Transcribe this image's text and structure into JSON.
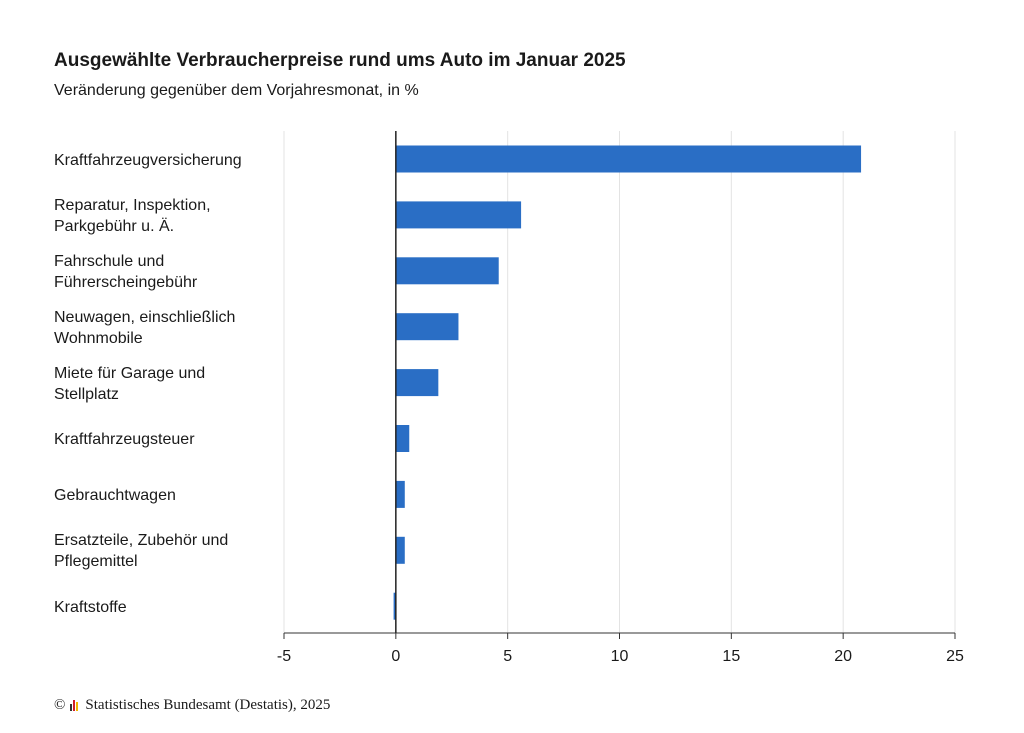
{
  "chart_data": {
    "type": "bar",
    "orientation": "horizontal",
    "title": "Ausgewählte Verbraucherpreise rund ums Auto im Januar 2025",
    "subtitle": "Veränderung gegenüber dem Vorjahresmonat, in %",
    "categories": [
      "Kraftfahrzeugversicherung",
      "Reparatur, Inspektion, Parkgebühr u. Ä.",
      "Fahrschule und Führerscheingebühr",
      "Neuwagen, einschließlich Wohnmobile",
      "Miete für Garage und Stellplatz",
      "Kraftfahrzeugsteuer",
      "Gebrauchtwagen",
      "Ersatzteile, Zubehör und Pflegemittel",
      "Kraftstoffe"
    ],
    "category_lines": [
      [
        "Kraftfahrzeugversicherung"
      ],
      [
        "Reparatur, Inspektion,",
        "Parkgebühr u. Ä."
      ],
      [
        "Fahrschule und",
        "Führerscheingebühr"
      ],
      [
        "Neuwagen, einschließlich",
        "Wohnmobile"
      ],
      [
        "Miete für Garage und",
        "Stellplatz"
      ],
      [
        "Kraftfahrzeugsteuer"
      ],
      [
        "Gebrauchtwagen"
      ],
      [
        "Ersatzteile, Zubehör und",
        "Pflegemittel"
      ],
      [
        "Kraftstoffe"
      ]
    ],
    "values": [
      20.8,
      5.6,
      4.6,
      2.8,
      1.9,
      0.6,
      0.4,
      0.4,
      -0.1
    ],
    "xlim": [
      -5,
      25
    ],
    "xticks": [
      -5,
      0,
      5,
      10,
      15,
      20,
      25
    ],
    "xtick_labels": [
      "-5",
      "0",
      "5",
      "10",
      "15",
      "20",
      "25"
    ],
    "grid": "vertical",
    "bar_color": "#2a6ec5",
    "legend": "none"
  },
  "footer": {
    "copyright_symbol": "©",
    "source": "Statistisches Bundesamt (Destatis), 2025"
  }
}
